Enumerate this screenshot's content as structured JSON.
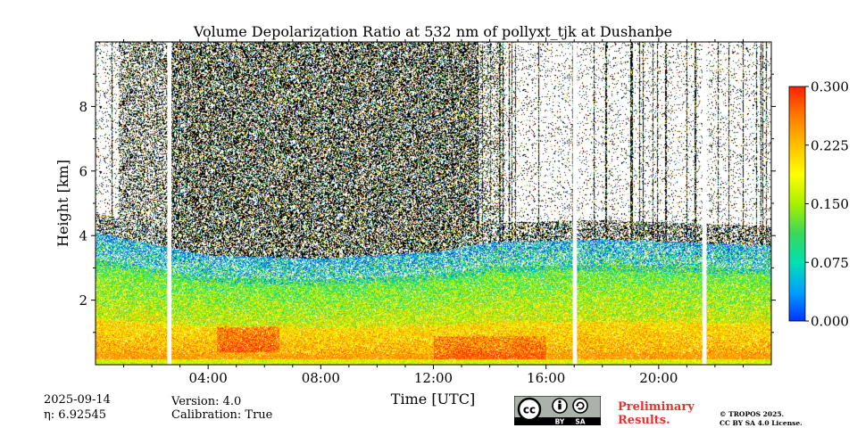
{
  "chart_data": {
    "type": "heatmap",
    "title": "Volume Depolarization Ratio at 532 nm of pollyxt_tjk at Dushanbe",
    "xlabel": "Time [UTC]",
    "ylabel": "Height [km]",
    "xlim_hours": [
      0,
      24
    ],
    "ylim_km": [
      0,
      10
    ],
    "x_ticks": [
      {
        "hour": 4,
        "label": "04:00"
      },
      {
        "hour": 8,
        "label": "08:00"
      },
      {
        "hour": 12,
        "label": "12:00"
      },
      {
        "hour": 16,
        "label": "16:00"
      },
      {
        "hour": 20,
        "label": "20:00"
      }
    ],
    "y_ticks": [
      {
        "km": 2,
        "label": "2"
      },
      {
        "km": 4,
        "label": "4"
      },
      {
        "km": 6,
        "label": "6"
      },
      {
        "km": 8,
        "label": "8"
      }
    ],
    "colorbar": {
      "min": 0.0,
      "max": 0.3,
      "ticks": [
        {
          "value": 0.0,
          "label": "0.000"
        },
        {
          "value": 0.075,
          "label": "0.075"
        },
        {
          "value": 0.15,
          "label": "0.150"
        },
        {
          "value": 0.225,
          "label": "0.225"
        },
        {
          "value": 0.3,
          "label": "0.300"
        }
      ],
      "colors": [
        "#0033ff",
        "#00a0ff",
        "#00e0b0",
        "#3ad85a",
        "#a8f000",
        "#ffff00",
        "#ffc000",
        "#ff7a00",
        "#ff2000"
      ]
    },
    "data_gaps_hours": [
      {
        "start": 2.55,
        "end": 2.7
      },
      {
        "start": 16.95,
        "end": 17.1
      },
      {
        "start": 21.55,
        "end": 21.7
      }
    ],
    "boundary_layer_top_km": [
      {
        "hour": 0,
        "km": 4.1
      },
      {
        "hour": 4,
        "km": 3.4
      },
      {
        "hour": 8,
        "km": 3.3
      },
      {
        "hour": 12,
        "km": 3.5
      },
      {
        "hour": 14,
        "km": 3.8
      },
      {
        "hour": 18,
        "km": 3.9
      },
      {
        "hour": 24,
        "km": 3.7
      }
    ]
  },
  "footer": {
    "date": "2025-09-14",
    "eta": "η: 6.92545",
    "version": "Version: 4.0",
    "calibration": "Calibration: True",
    "preliminary_line1": "Preliminary",
    "preliminary_line2": "Results.",
    "license_line1": "© TROPOS 2025.",
    "license_line2": "CC BY SA 4.0 License.",
    "cc_label": "cc",
    "by_label": "BY",
    "sa_label": "SA"
  }
}
